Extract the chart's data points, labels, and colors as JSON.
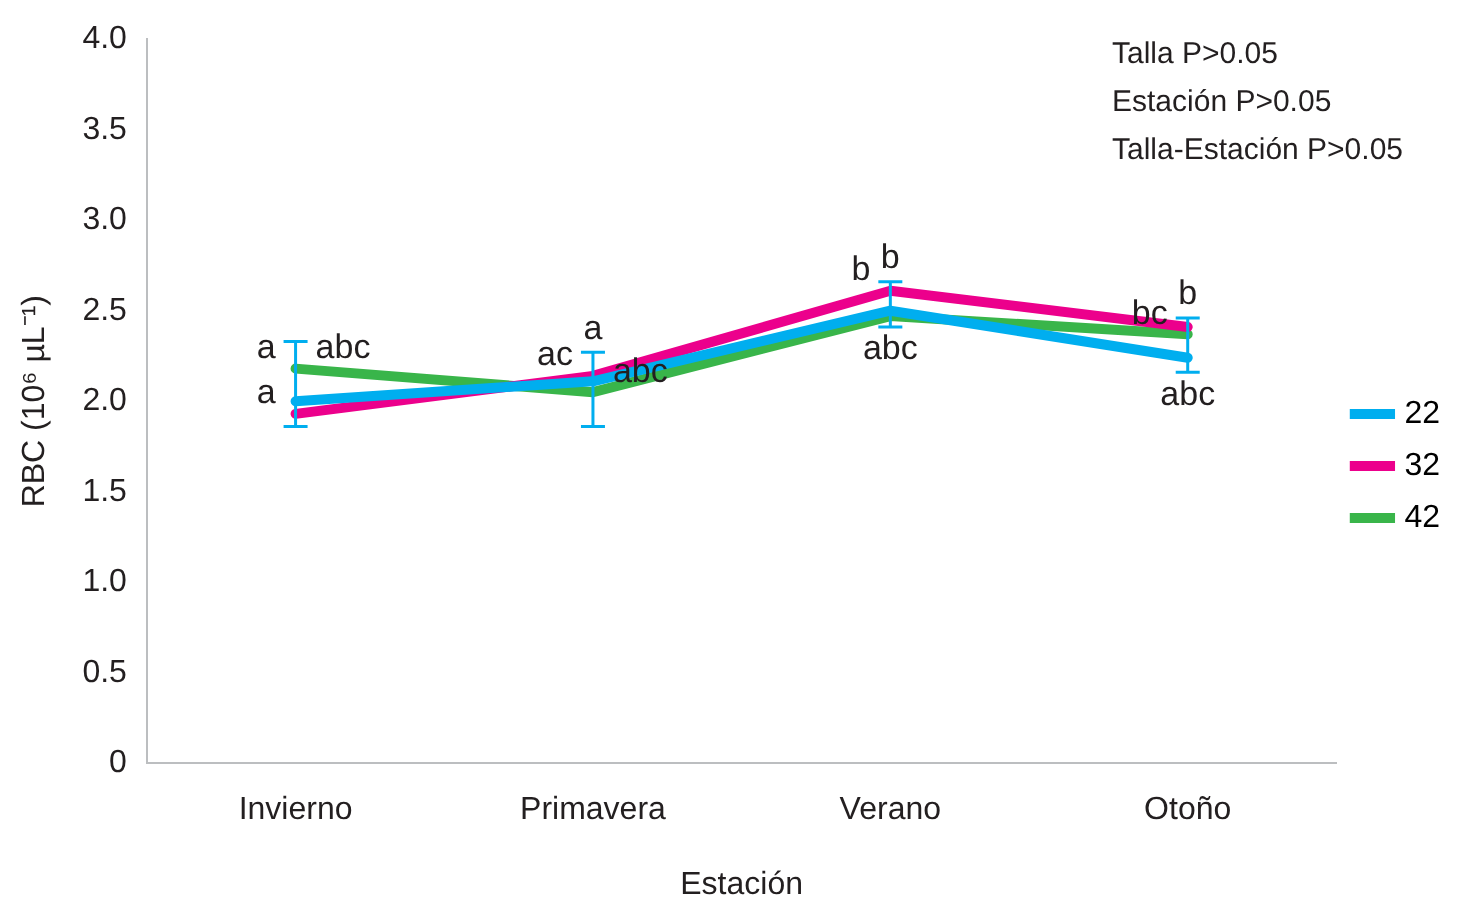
{
  "chart_data": {
    "type": "line",
    "xlabel": "Estación",
    "ylabel": "RBC (10⁶ µL⁻¹)",
    "categories": [
      "Invierno",
      "Primavera",
      "Verano",
      "Otoño"
    ],
    "ylim": [
      0,
      4
    ],
    "yticks": [
      0,
      0.5,
      {
        "value": 1,
        "label": "1.0"
      },
      1.5,
      {
        "value": 2,
        "label": "2.0"
      },
      2.5,
      {
        "value": 3,
        "label": "3.0"
      },
      3.5,
      {
        "value": 4,
        "label": "4.0"
      }
    ],
    "grid": false,
    "legend": "right",
    "marker": "none",
    "line_style": "solid",
    "series": [
      {
        "name": "22",
        "color": "#00aeef",
        "values": [
          2.0,
          2.11,
          2.5,
          2.24
        ],
        "errors": [
          [
            1.86,
            2.33
          ],
          [
            1.86,
            2.27
          ],
          [
            2.41,
            2.66
          ],
          [
            2.16,
            2.46
          ]
        ]
      },
      {
        "name": "32",
        "color": "#ec008c",
        "values": [
          1.93,
          2.14,
          2.61,
          2.41
        ]
      },
      {
        "name": "42",
        "color": "#39b54a",
        "values": [
          2.18,
          2.05,
          2.47,
          2.37
        ]
      }
    ],
    "annotations": [
      "Talla P>0.05",
      "Estación P>0.05",
      "Talla-Estación P>0.05",
      {
        "text": "a",
        "x": "Invierno",
        "y": 2.18
      },
      {
        "text": "abc",
        "x": "Invierno",
        "y": 2.18
      },
      {
        "text": "a",
        "x": "Invierno",
        "y": 1.93
      },
      {
        "text": "ac",
        "x": "Primavera",
        "y": 2.14
      },
      {
        "text": "abc",
        "x": "Primavera",
        "y": 2.05
      },
      {
        "text": "a",
        "x": "Primavera",
        "y": 2.27
      },
      {
        "text": "b",
        "x": "Verano",
        "y": 2.61
      },
      {
        "text": "abc",
        "x": "Verano",
        "y": 2.41
      },
      {
        "text": "b",
        "x": "Verano",
        "y": 2.66
      },
      {
        "text": "b",
        "x": "Otoño",
        "y": 2.46
      },
      {
        "text": "bc",
        "x": "Otoño",
        "y": 2.37
      },
      {
        "text": "abc",
        "x": "Otoño",
        "y": 2.16
      }
    ]
  }
}
